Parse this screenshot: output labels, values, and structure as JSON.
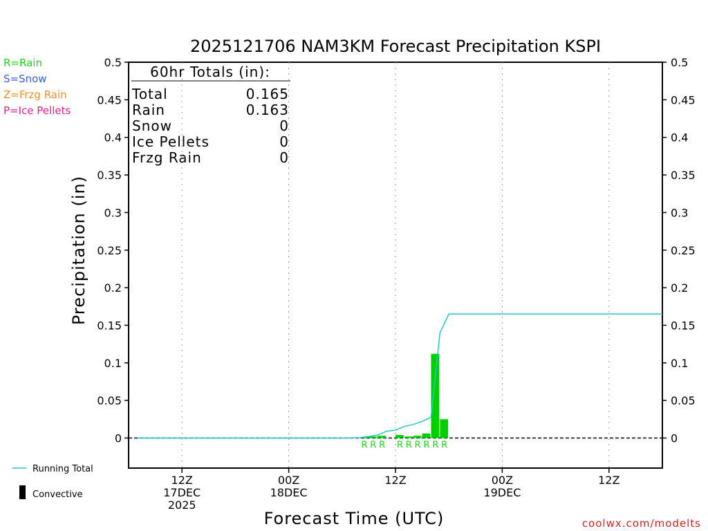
{
  "chart_data": {
    "type": "bar",
    "title": "2025121706 NAM3KM Forecast Precipitation KSPI",
    "xlabel": "Forecast Time (UTC)",
    "ylabel": "Precipitation (in)",
    "ylim": [
      -0.04,
      0.5
    ],
    "yticks": [
      0,
      0.05,
      0.1,
      0.15,
      0.2,
      0.25,
      0.3,
      0.35,
      0.4,
      0.45,
      0.5
    ],
    "ytick_labels": [
      "0",
      "0.05",
      "0.1",
      "0.15",
      "0.2",
      "0.25",
      "0.3",
      "0.35",
      "0.4",
      "0.45",
      "0.5"
    ],
    "x_unit": "hours since 2025-12-17 00Z",
    "xlim": [
      6,
      66
    ],
    "x_ticks": [
      {
        "x": 12,
        "lines": [
          "12Z",
          "17DEC",
          "2025"
        ]
      },
      {
        "x": 24,
        "lines": [
          "00Z",
          "18DEC"
        ]
      },
      {
        "x": 36,
        "lines": [
          "12Z"
        ]
      },
      {
        "x": 48,
        "lines": [
          "00Z",
          "19DEC"
        ]
      },
      {
        "x": 60,
        "lines": [
          "12Z"
        ]
      }
    ],
    "grid": "vertical dotted",
    "series": [
      {
        "name": "Convective",
        "kind": "bar",
        "color": "#00d000",
        "x": [
          33,
          34,
          35,
          36,
          37,
          38,
          39,
          40,
          41,
          42
        ],
        "values": [
          0.001,
          0.002,
          0.003,
          0.0,
          0.004,
          0.002,
          0.003,
          0.006,
          0.112,
          0.025
        ],
        "ptype": [
          "R",
          "R",
          "R",
          "",
          "R",
          "R",
          "R",
          "R",
          "R",
          "R"
        ]
      },
      {
        "name": "Running Total",
        "kind": "line",
        "color": "#1ec8c8",
        "x": [
          7,
          30,
          32,
          33,
          34,
          35,
          36,
          37,
          38,
          39,
          40,
          41,
          42,
          66
        ],
        "values": [
          0,
          0,
          0.0005,
          0.002,
          0.004,
          0.009,
          0.0105,
          0.0155,
          0.018,
          0.022,
          0.028,
          0.14,
          0.165,
          0.165
        ]
      }
    ],
    "totals_box": {
      "heading": "60hr Totals (in):",
      "rows": [
        {
          "label": "Total",
          "value": "0.165"
        },
        {
          "label": "Rain",
          "value": "0.163"
        },
        {
          "label": "Snow",
          "value": "0"
        },
        {
          "label": "Ice Pellets",
          "value": "0"
        },
        {
          "label": "Frzg Rain",
          "value": "0"
        }
      ]
    },
    "ptype_legend": [
      {
        "text": "R=Rain",
        "color": "#19d919"
      },
      {
        "text": "S=Snow",
        "color": "#3a5ee0"
      },
      {
        "text": "Z=Frzg Rain",
        "color": "#f0902a"
      },
      {
        "text": "P=Ice Pellets",
        "color": "#e0208a"
      }
    ],
    "bottom_legend": [
      {
        "text": "Running Total",
        "symbol": "line",
        "color": "#1ec8c8"
      },
      {
        "text": "Convective",
        "symbol": "bar",
        "color": "#000000"
      }
    ]
  },
  "watermark": "coolwx.com/modelts"
}
